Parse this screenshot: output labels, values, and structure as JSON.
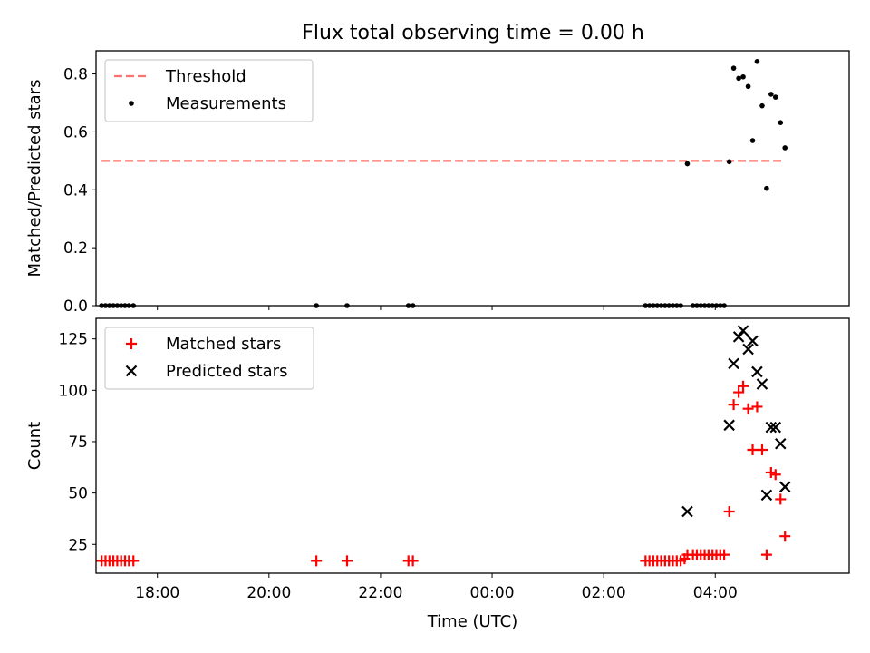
{
  "figure": {
    "title": "Flux total observing time = 0.00 h"
  },
  "chart_data": [
    {
      "type": "scatter",
      "panel": "top",
      "ylabel": "Matched/Predicted stars",
      "ylim": [
        0,
        0.88
      ],
      "yticks": [
        0.0,
        0.2,
        0.4,
        0.6,
        0.8
      ],
      "ytick_labels": [
        "0.0",
        "0.2",
        "0.4",
        "0.6",
        "0.8"
      ],
      "xlim": [
        -7.1,
        6.4
      ],
      "legend_position": "top-left",
      "threshold": {
        "name": "Threshold",
        "y": 0.5,
        "x_range": [
          -7.0,
          5.25
        ],
        "color": "#ff7070",
        "style": "dashed"
      },
      "series": [
        {
          "name": "Measurements",
          "color": "#000000",
          "marker": "dot",
          "points": [
            [
              -7.0,
              0.0
            ],
            [
              -6.93,
              0.0
            ],
            [
              -6.86,
              0.0
            ],
            [
              -6.79,
              0.0
            ],
            [
              -6.72,
              0.0
            ],
            [
              -6.65,
              0.0
            ],
            [
              -6.58,
              0.0
            ],
            [
              -6.51,
              0.0
            ],
            [
              -6.43,
              0.0
            ],
            [
              -3.15,
              0.0
            ],
            [
              -2.6,
              0.0
            ],
            [
              -1.5,
              0.0
            ],
            [
              -1.42,
              0.0
            ],
            [
              2.75,
              0.0
            ],
            [
              2.82,
              0.0
            ],
            [
              2.89,
              0.0
            ],
            [
              2.96,
              0.0
            ],
            [
              3.03,
              0.0
            ],
            [
              3.1,
              0.0
            ],
            [
              3.17,
              0.0
            ],
            [
              3.24,
              0.0
            ],
            [
              3.31,
              0.0
            ],
            [
              3.38,
              0.0
            ],
            [
              3.5,
              0.49
            ],
            [
              3.6,
              0.0
            ],
            [
              3.67,
              0.0
            ],
            [
              3.74,
              0.0
            ],
            [
              3.81,
              0.0
            ],
            [
              3.88,
              0.0
            ],
            [
              3.95,
              0.0
            ],
            [
              4.02,
              0.0
            ],
            [
              4.09,
              0.0
            ],
            [
              4.16,
              0.0
            ],
            [
              4.25,
              0.497
            ],
            [
              4.33,
              0.82
            ],
            [
              4.42,
              0.785
            ],
            [
              4.5,
              0.79
            ],
            [
              4.59,
              0.757
            ],
            [
              4.67,
              0.57
            ],
            [
              4.75,
              0.843
            ],
            [
              4.84,
              0.69
            ],
            [
              4.92,
              0.405
            ],
            [
              5.0,
              0.73
            ],
            [
              5.08,
              0.72
            ],
            [
              5.17,
              0.632
            ],
            [
              5.25,
              0.545
            ]
          ]
        }
      ]
    },
    {
      "type": "scatter",
      "panel": "bottom",
      "xlabel": "Time (UTC)",
      "ylabel": "Count",
      "ylim": [
        11,
        135
      ],
      "yticks": [
        25,
        50,
        75,
        100,
        125
      ],
      "ytick_labels": [
        "25",
        "50",
        "75",
        "100",
        "125"
      ],
      "xlim": [
        -7.1,
        6.4
      ],
      "xticks": [
        -6,
        -4,
        -2,
        0,
        2,
        4
      ],
      "xtick_labels": [
        "18:00",
        "20:00",
        "22:00",
        "00:00",
        "02:00",
        "04:00"
      ],
      "legend_position": "top-left",
      "series": [
        {
          "name": "Matched stars",
          "color": "#ff0000",
          "marker": "plus",
          "points": [
            [
              -7.0,
              17
            ],
            [
              -6.93,
              17
            ],
            [
              -6.86,
              17
            ],
            [
              -6.79,
              17
            ],
            [
              -6.72,
              17
            ],
            [
              -6.65,
              17
            ],
            [
              -6.58,
              17
            ],
            [
              -6.51,
              17
            ],
            [
              -6.43,
              17
            ],
            [
              -3.15,
              17
            ],
            [
              -2.6,
              17
            ],
            [
              -1.5,
              17
            ],
            [
              -1.42,
              17
            ],
            [
              2.75,
              17
            ],
            [
              2.82,
              17
            ],
            [
              2.89,
              17
            ],
            [
              2.96,
              17
            ],
            [
              3.03,
              17
            ],
            [
              3.1,
              17
            ],
            [
              3.17,
              17
            ],
            [
              3.24,
              17
            ],
            [
              3.31,
              17
            ],
            [
              3.38,
              17
            ],
            [
              3.45,
              18
            ],
            [
              3.5,
              20
            ],
            [
              3.6,
              20
            ],
            [
              3.67,
              20
            ],
            [
              3.74,
              20
            ],
            [
              3.81,
              20
            ],
            [
              3.88,
              20
            ],
            [
              3.95,
              20
            ],
            [
              4.02,
              20
            ],
            [
              4.09,
              20
            ],
            [
              4.16,
              20
            ],
            [
              4.25,
              41
            ],
            [
              4.33,
              93
            ],
            [
              4.42,
              99
            ],
            [
              4.5,
              102
            ],
            [
              4.59,
              91
            ],
            [
              4.67,
              71
            ],
            [
              4.75,
              92
            ],
            [
              4.84,
              71
            ],
            [
              4.92,
              20
            ],
            [
              5.0,
              60
            ],
            [
              5.08,
              59
            ],
            [
              5.17,
              47
            ],
            [
              5.25,
              29
            ]
          ]
        },
        {
          "name": "Predicted stars",
          "color": "#000000",
          "marker": "x",
          "points": [
            [
              3.5,
              41
            ],
            [
              4.25,
              83
            ],
            [
              4.33,
              113
            ],
            [
              4.42,
              126
            ],
            [
              4.5,
              129
            ],
            [
              4.59,
              120
            ],
            [
              4.67,
              124
            ],
            [
              4.75,
              109
            ],
            [
              4.84,
              103
            ],
            [
              4.92,
              49
            ],
            [
              5.0,
              82
            ],
            [
              5.08,
              82
            ],
            [
              5.17,
              74
            ],
            [
              5.25,
              53
            ]
          ]
        }
      ]
    }
  ]
}
